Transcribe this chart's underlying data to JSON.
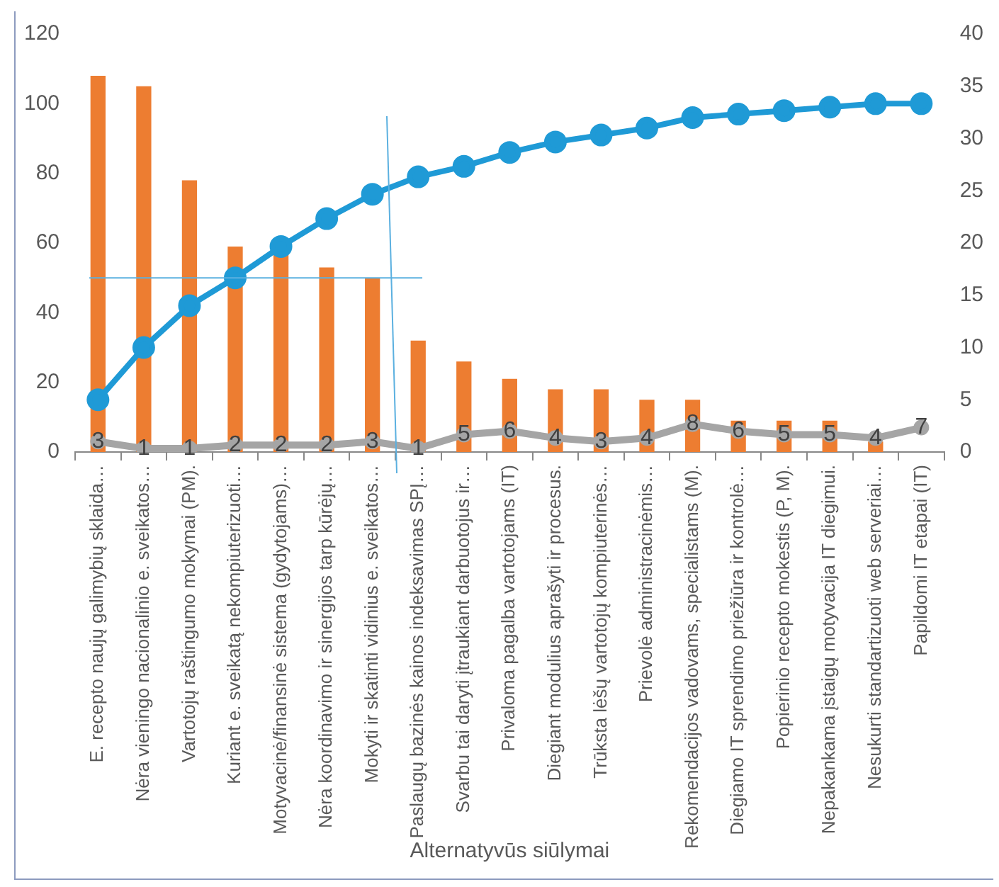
{
  "chart_data": {
    "type": "bar",
    "xlabel": "Alternatyvūs siūlymai",
    "categories": [
      "E. recepto naujų galimybių sklaida…",
      "Nėra vieningo nacionalinio e. sveikatos…",
      "Vartotojų raštingumo mokymai (PM).",
      "Kuriant e. sveikatą nekompiuterizuoti…",
      "Motyvacinė/finansinė sistema (gydytojams)…",
      "Nėra koordinavimo ir sinergijos tarp kūrėjų…",
      "Mokyti ir skatinti vidinius e. sveikatos…",
      "Paslaugų bazinės kainos indeksavimas SPĮ…",
      "Svarbu tai daryti įtraukiant darbuotojus ir…",
      "Privaloma pagalba vartotojams (IT)",
      "Diegiant modulius aprašyti ir procesus.",
      "Trūksta lėšų vartotojų kompiuterinės…",
      "Prievolė administracinėmis…",
      "Rekomendacijos vadovams, specialistams (M).",
      "Diegiamo IT sprendimo priežiūra ir kontrolė…",
      "Popierinio recepto mokestis (P, M).",
      "Nepakankama įstaigų motyvacija IT diegimui.",
      "Nesukurti standartizuoti web serveriai…",
      "Papildomi IT etapai (IT)"
    ],
    "series": [
      {
        "color": "#ed7d31",
        "values": [
          108,
          105,
          78,
          59,
          57,
          53,
          50,
          32,
          26,
          21,
          18,
          18,
          15,
          15,
          9,
          9,
          9,
          3,
          0
        ]
      },
      {
        "type": "line",
        "color": "#1f9ad6",
        "values": [
          15,
          30,
          42,
          50,
          59,
          67,
          74,
          79,
          82,
          86,
          89,
          91,
          93,
          96,
          97,
          98,
          99,
          100,
          100
        ]
      },
      {
        "type": "line",
        "color": "#a5a5a5",
        "values": [
          3,
          1,
          1,
          2,
          2,
          2,
          3,
          1,
          5,
          6,
          4,
          3,
          4,
          8,
          6,
          5,
          5,
          4,
          7
        ],
        "value_labels": [
          "3",
          "1",
          "1",
          "2",
          "2",
          "2",
          "3",
          "1",
          "5",
          "6",
          "4",
          "3",
          "4",
          "8",
          "6",
          "5",
          "5",
          "4",
          "7"
        ]
      }
    ],
    "ylim": [
      0,
      120
    ],
    "yticks": [
      0,
      20,
      40,
      60,
      80,
      100,
      120
    ],
    "y2lim": [
      0,
      40
    ],
    "y2ticks": [
      0,
      5,
      10,
      15,
      20,
      25,
      30,
      35,
      40
    ],
    "ref_lines": [
      {
        "axis": "y",
        "value": 50,
        "color": "#5bb0e0"
      }
    ],
    "marker": "circle",
    "grid": false,
    "legend": false
  }
}
